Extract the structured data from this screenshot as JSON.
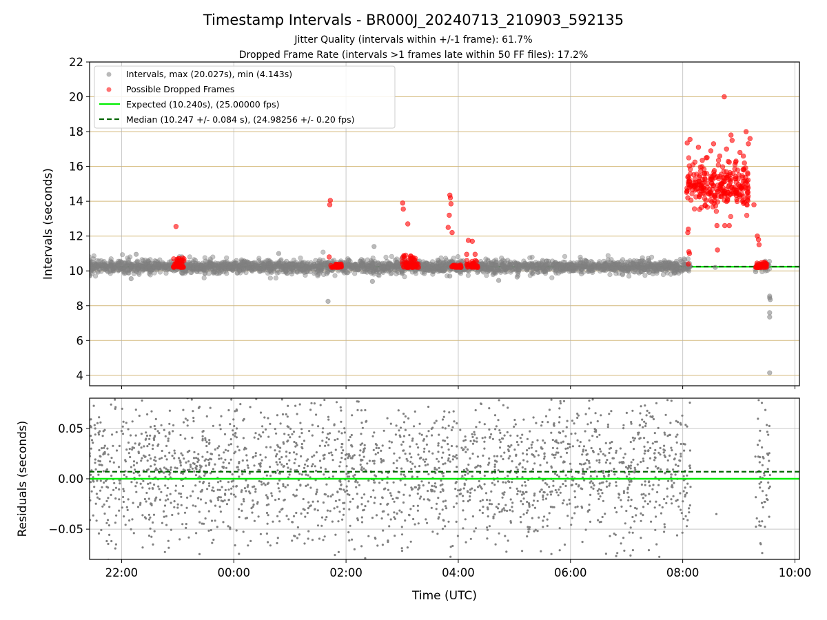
{
  "figure": {
    "title": "Timestamp Intervals - BR000J_20240713_210903_592135",
    "subtitle_jitter": "Jitter Quality (intervals within +/-1 frame): 61.7%",
    "subtitle_dropped": "Dropped Frame Rate (intervals >1 frames late within 50 FF files): 17.2%",
    "xlabel": "Time (UTC)"
  },
  "colors": {
    "intervals": "#808080",
    "dropped": "#ff0000",
    "expected": "#00ee00",
    "median": "#006400",
    "hgrid_top": "#d4b97a",
    "grid": "#b0b0b0"
  },
  "chart_data": [
    {
      "type": "scatter",
      "panel": "intervals",
      "ylabel": "Intervals (seconds)",
      "x_unit": "hours since 00:00 UTC (negative = previous day)",
      "xlim": [
        -2.57,
        10.08
      ],
      "ylim": [
        3.4,
        22.0
      ],
      "yticks": [
        4,
        6,
        8,
        10,
        12,
        14,
        16,
        18,
        20,
        22
      ],
      "grid": "on",
      "legend_position": "top-left",
      "legend": [
        "Intervals, max (20.027s), min (4.143s)",
        "Possible Dropped Frames",
        "Expected (10.240s), (25.00000 fps)",
        "Median (10.247 +/- 0.084 s), (24.98256 +/- 0.20 fps)"
      ],
      "expected": 10.24,
      "median": 10.247,
      "interval_bands": [
        {
          "x_start": -2.83,
          "x_end": 8.14,
          "center": 10.24,
          "spread": 0.16
        },
        {
          "x_start": 9.29,
          "x_end": 9.55,
          "center": 10.28,
          "spread": 0.1
        }
      ],
      "interval_points": [
        [
          -1.83,
          9.55
        ],
        [
          -1.74,
          10.95
        ],
        [
          -0.93,
          9.9
        ],
        [
          -0.3,
          9.85
        ],
        [
          0.8,
          11.0
        ],
        [
          1.02,
          9.95
        ],
        [
          1.68,
          8.25
        ],
        [
          2.5,
          11.4
        ],
        [
          2.47,
          9.4
        ],
        [
          3.0,
          9.85
        ],
        [
          3.85,
          9.7
        ],
        [
          4.72,
          9.45
        ],
        [
          5.05,
          9.65
        ],
        [
          8.58,
          10.2
        ],
        [
          9.3,
          9.95
        ],
        [
          9.55,
          8.55
        ],
        [
          9.55,
          8.45
        ],
        [
          9.56,
          8.35
        ],
        [
          9.55,
          7.6
        ],
        [
          9.55,
          7.35
        ],
        [
          9.55,
          4.143
        ]
      ],
      "dropped_clusters": [
        {
          "x_start": -1.08,
          "x_end": -0.87,
          "y_min": 10.2,
          "y_max": 10.75,
          "count": 45
        },
        {
          "x_start": 1.72,
          "x_end": 1.92,
          "y_min": 10.2,
          "y_max": 10.4,
          "count": 30
        },
        {
          "x_start": 3.0,
          "x_end": 3.3,
          "y_min": 10.2,
          "y_max": 10.9,
          "count": 60
        },
        {
          "x_start": 3.88,
          "x_end": 4.05,
          "y_min": 10.2,
          "y_max": 10.35,
          "count": 30
        },
        {
          "x_start": 4.15,
          "x_end": 4.35,
          "y_min": 10.2,
          "y_max": 10.6,
          "count": 40
        },
        {
          "x_start": 9.3,
          "x_end": 9.5,
          "y_min": 10.2,
          "y_max": 10.5,
          "count": 35
        },
        {
          "x_start": 8.07,
          "x_end": 9.17,
          "y_min": 13.9,
          "y_max": 15.8,
          "count": 260
        }
      ],
      "dropped_points": [
        [
          -1.03,
          12.55
        ],
        [
          1.72,
          14.05
        ],
        [
          1.71,
          13.8
        ],
        [
          1.7,
          10.8
        ],
        [
          3.01,
          13.9
        ],
        [
          3.02,
          13.55
        ],
        [
          3.1,
          12.7
        ],
        [
          3.85,
          14.35
        ],
        [
          3.86,
          14.2
        ],
        [
          3.87,
          13.85
        ],
        [
          3.84,
          13.2
        ],
        [
          3.82,
          12.5
        ],
        [
          3.89,
          12.2
        ],
        [
          4.18,
          11.75
        ],
        [
          4.25,
          11.7
        ],
        [
          4.15,
          10.95
        ],
        [
          4.3,
          10.95
        ],
        [
          8.08,
          17.35
        ],
        [
          8.13,
          17.55
        ],
        [
          8.09,
          14.2
        ],
        [
          8.1,
          12.4
        ],
        [
          8.09,
          12.2
        ],
        [
          8.11,
          11.1
        ],
        [
          8.12,
          11.0
        ],
        [
          8.1,
          10.4
        ],
        [
          8.28,
          17.1
        ],
        [
          8.35,
          16.35
        ],
        [
          8.42,
          16.5
        ],
        [
          8.5,
          16.9
        ],
        [
          8.55,
          17.3
        ],
        [
          8.61,
          12.6
        ],
        [
          8.62,
          11.2
        ],
        [
          8.66,
          16.6
        ],
        [
          8.74,
          20.0
        ],
        [
          8.75,
          12.6
        ],
        [
          8.83,
          12.6
        ],
        [
          8.78,
          17.0
        ],
        [
          8.86,
          17.8
        ],
        [
          8.88,
          17.5
        ],
        [
          8.95,
          16.3
        ],
        [
          9.02,
          16.8
        ],
        [
          9.08,
          16.6
        ],
        [
          9.1,
          16.2
        ],
        [
          9.13,
          18.0
        ],
        [
          9.2,
          17.6
        ],
        [
          9.17,
          17.3
        ],
        [
          9.27,
          13.8
        ],
        [
          9.33,
          12.0
        ],
        [
          9.35,
          11.8
        ],
        [
          9.36,
          11.5
        ]
      ],
      "tick_labels": [
        "22:00",
        "00:00",
        "02:00",
        "04:00",
        "06:00",
        "08:00",
        "10:00"
      ]
    },
    {
      "type": "scatter",
      "panel": "residuals",
      "ylabel": "Residuals (seconds)",
      "xlabel": "Time (UTC)",
      "xlim": [
        -2.57,
        10.08
      ],
      "ylim": [
        -0.08,
        0.08
      ],
      "yticks": [
        -0.05,
        0.0,
        0.05
      ],
      "ytick_labels": [
        "−0.05",
        "0.00",
        "0.05"
      ],
      "grid": "on",
      "expected_line": 0.0,
      "median_line": 0.007,
      "residual_bands": [
        {
          "x_start": -2.83,
          "x_end": 8.14,
          "count": 2300
        },
        {
          "x_start": 9.29,
          "x_end": 9.56,
          "count": 60
        }
      ],
      "isolated_points": [
        [
          8.6,
          -0.035
        ]
      ],
      "xticks": [
        -2,
        0,
        2,
        4,
        6,
        8,
        10
      ],
      "xtick_labels": [
        "22:00",
        "00:00",
        "02:00",
        "04:00",
        "06:00",
        "08:00",
        "10:00"
      ]
    }
  ]
}
